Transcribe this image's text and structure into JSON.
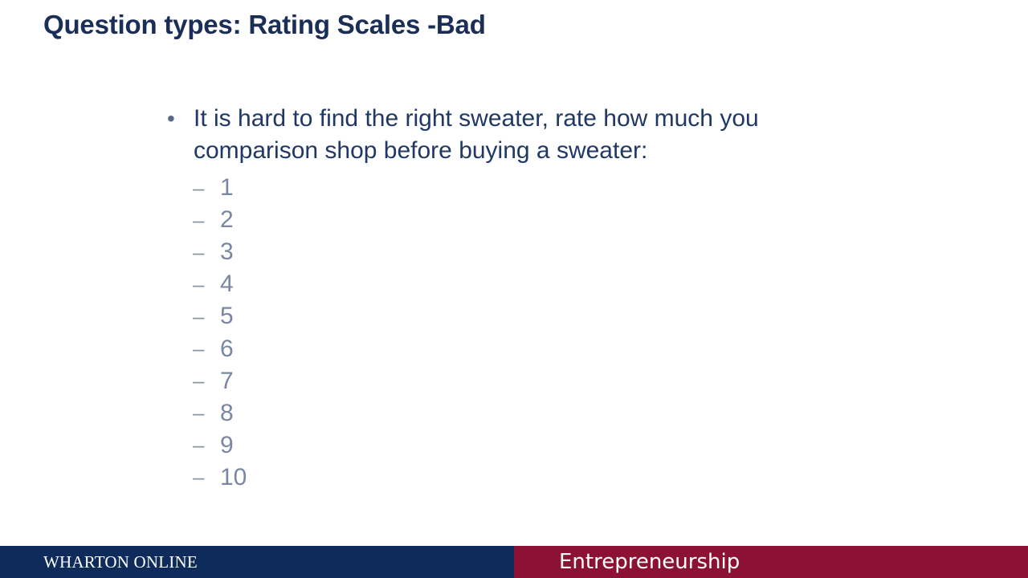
{
  "slide": {
    "title": "Question types: Rating Scales -Bad",
    "bullet": {
      "marker": "•",
      "lines": [
        "It is hard to find the right sweater, rate how much you",
        "comparison shop before buying a sweater:"
      ]
    },
    "sub_items": [
      "1",
      "2",
      "3",
      "4",
      "5",
      "6",
      "7",
      "8",
      "9",
      "10"
    ],
    "sub_marker": "–"
  },
  "footer": {
    "left_label": "WHARTON ONLINE",
    "right_label": "Entrepreneurship"
  },
  "colors": {
    "title": "#1b2e58",
    "footer_left_bg": "#0f2b5c",
    "footer_right_bg": "#8b1232"
  }
}
